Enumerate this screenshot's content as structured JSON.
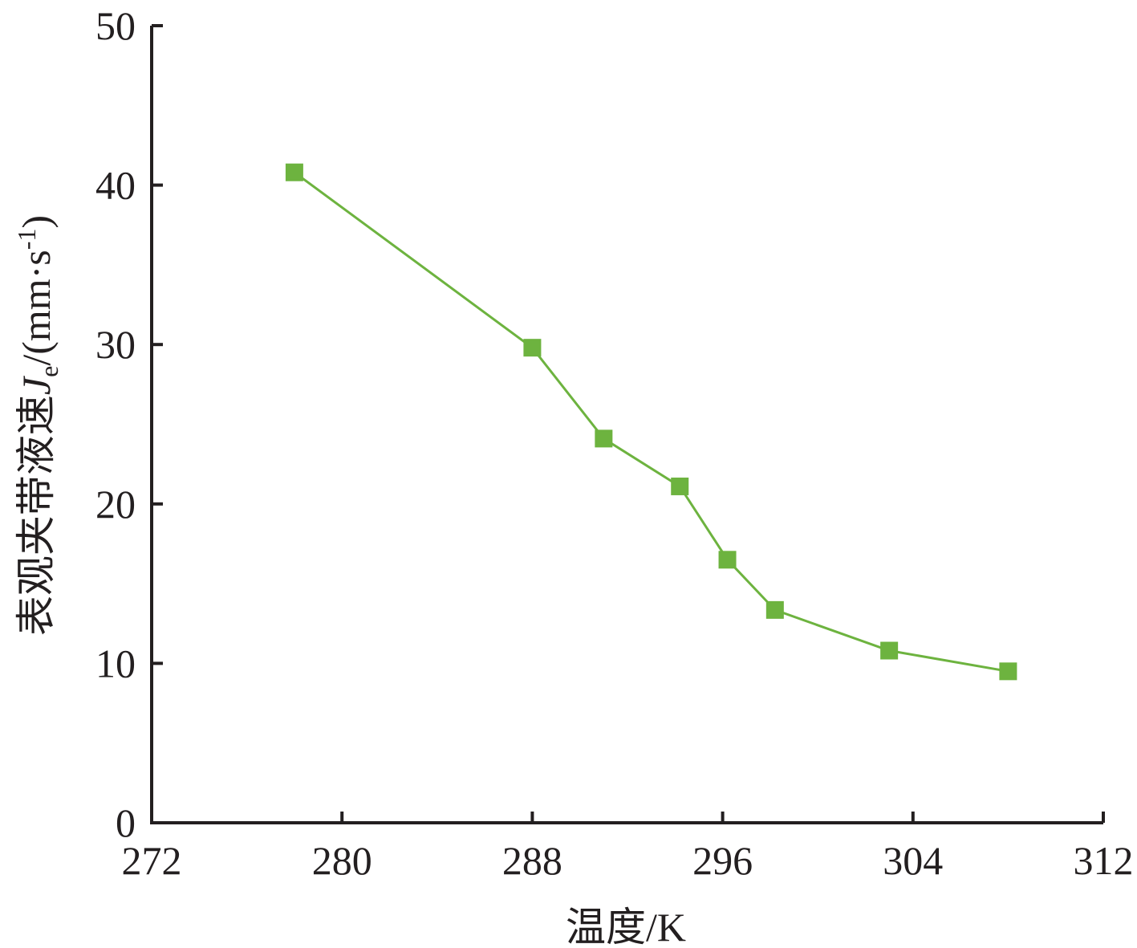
{
  "chart_data": {
    "type": "line",
    "x_label": "温度/K",
    "y_label": [
      "表观夹带液速",
      "J",
      "e",
      "/(mm·s",
      "-1",
      ")"
    ],
    "x": [
      278,
      288,
      291,
      294.2,
      296.2,
      298.2,
      303,
      308
    ],
    "series": [
      {
        "color": "#6db33f",
        "values": [
          40.8,
          29.8,
          24.1,
          21.1,
          16.5,
          13.35,
          10.8,
          9.5
        ]
      }
    ],
    "xlim": [
      272,
      312
    ],
    "xticks": [
      272,
      280,
      288,
      296,
      304,
      312
    ],
    "ylim": [
      0,
      50
    ],
    "yticks": [
      0,
      10,
      20,
      30,
      40,
      50
    ],
    "marker": "square",
    "grid": false
  }
}
